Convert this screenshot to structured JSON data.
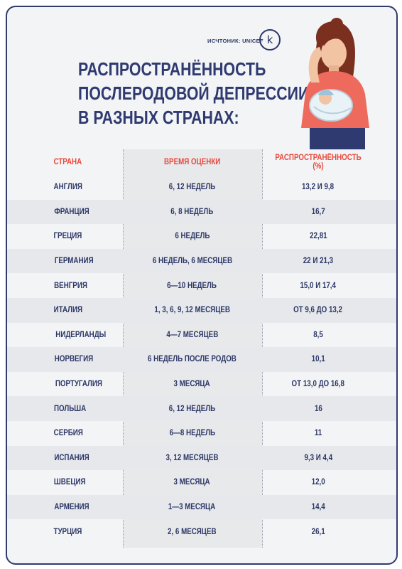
{
  "source": "ИСЧТОНИК: UNICEF",
  "logo_letter": "k",
  "title_lines": [
    "РАСПРОСТРАНЁННОСТЬ",
    "ПОСЛЕРОДОВОЙ ДЕПРЕССИИ",
    "В РАЗНЫХ СТРАНАХ:"
  ],
  "table": {
    "headers": [
      "СТРАНА",
      "ВРЕМЯ ОЦЕНКИ",
      "РАСПРОСТРАНЁННОСТЬ (%)"
    ],
    "rows": [
      [
        "АНГЛИЯ",
        "6, 12 НЕДЕЛЬ",
        "13,2 И 9,8"
      ],
      [
        "ФРАНЦИЯ",
        "6, 8 НЕДЕЛЬ",
        "16,7"
      ],
      [
        "ГРЕЦИЯ",
        "6 НЕДЕЛЬ",
        "22,81"
      ],
      [
        "ГЕРМАНИЯ",
        "6 НЕДЕЛЬ, 6 МЕСЯЦЕВ",
        "22 И 21,3"
      ],
      [
        "ВЕНГРИЯ",
        "6—10 НЕДЕЛЬ",
        "15,0 И 17,4"
      ],
      [
        "ИТАЛИЯ",
        "1, 3, 6, 9, 12 МЕСЯЦЕВ",
        "ОТ 9,6 ДО 13,2"
      ],
      [
        "НИДЕРЛАНДЫ",
        "4—7 МЕСЯЦЕВ",
        "8,5"
      ],
      [
        "НОРВЕГИЯ",
        "6 НЕДЕЛЬ ПОСЛЕ РОДОВ",
        "10,1"
      ],
      [
        "ПОРТУГАЛИЯ",
        "3 МЕСЯЦА",
        "ОТ 13,0 ДО 16,8"
      ],
      [
        "ПОЛЬША",
        "6, 12 НЕДЕЛЬ",
        "16"
      ],
      [
        "СЕРБИЯ",
        "6—8 НЕДЕЛЬ",
        "11"
      ],
      [
        "ИСПАНИЯ",
        "3, 12 МЕСЯЦЕВ",
        "9,3 И 4,4"
      ],
      [
        "ШВЕЦИЯ",
        "3 МЕСЯЦА",
        "12,0"
      ],
      [
        "АРМЕНИЯ",
        "1—3 МЕСЯЦА",
        "14,4"
      ],
      [
        "ТУРЦИЯ",
        "2, 6 МЕСЯЦЕВ",
        "26,1"
      ]
    ]
  },
  "colors": {
    "title": "#2f3a70",
    "header": "#e8483c",
    "border": "#2f3b6e"
  },
  "icons": [
    "logo-k-icon",
    "mother-with-baby-illustration"
  ]
}
